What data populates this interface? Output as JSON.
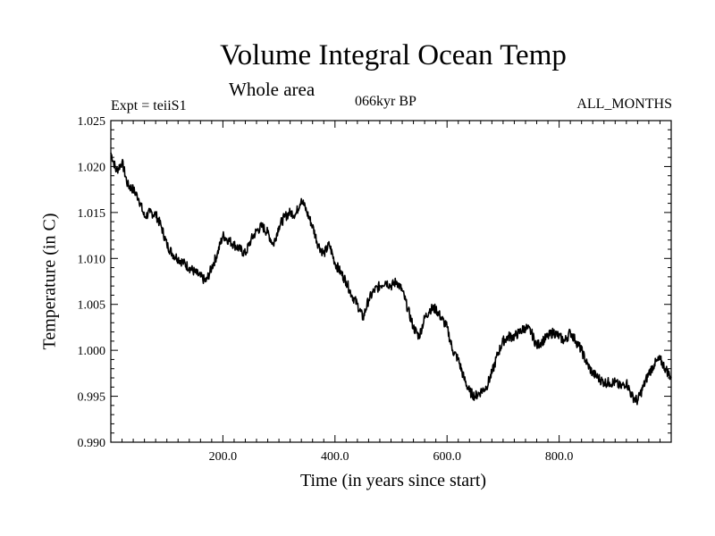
{
  "chart_data": {
    "type": "line",
    "title": "Volume Integral Ocean Temp",
    "subtitle": "Whole area",
    "annotations": {
      "experiment": "Expt = teiiS1",
      "period": "066kyr BP",
      "months": "ALL_MONTHS"
    },
    "xlabel": "Time (in years since start)",
    "ylabel": "Temperature (in C)",
    "xlim": [
      0,
      1000
    ],
    "ylim": [
      0.99,
      1.025
    ],
    "x_ticks": [
      200,
      400,
      600,
      800
    ],
    "x_tick_labels": [
      "200.0",
      "400.0",
      "600.0",
      "800.0"
    ],
    "y_ticks": [
      0.99,
      0.995,
      1.0,
      1.005,
      1.01,
      1.015,
      1.02,
      1.025
    ],
    "y_tick_labels": [
      "0.990",
      "0.995",
      "1.000",
      "1.005",
      "1.010",
      "1.015",
      "1.020",
      "1.025"
    ],
    "grid": false,
    "line_color": "#000000",
    "series": [
      {
        "x": [
          0,
          10,
          20,
          30,
          40,
          50,
          60,
          70,
          80,
          90,
          100,
          110,
          120,
          130,
          140,
          150,
          160,
          170,
          180,
          190,
          200,
          210,
          220,
          230,
          240,
          250,
          260,
          270,
          280,
          290,
          300,
          310,
          320,
          330,
          340,
          350,
          360,
          370,
          380,
          390,
          400,
          410,
          420,
          430,
          440,
          450,
          460,
          470,
          480,
          490,
          500,
          510,
          520,
          530,
          540,
          550,
          560,
          570,
          580,
          590,
          600,
          610,
          620,
          630,
          640,
          650,
          660,
          670,
          680,
          690,
          700,
          710,
          720,
          730,
          740,
          750,
          760,
          770,
          780,
          790,
          800,
          810,
          820,
          830,
          840,
          850,
          860,
          870,
          880,
          890,
          900,
          910,
          920,
          930,
          940,
          950,
          960,
          970,
          980,
          990,
          1000
        ],
        "values": [
          1.0215,
          1.0195,
          1.0205,
          1.018,
          1.0175,
          1.0165,
          1.0145,
          1.015,
          1.0148,
          1.0135,
          1.0115,
          1.0105,
          1.01,
          1.0095,
          1.009,
          1.0085,
          1.008,
          1.0075,
          1.009,
          1.0105,
          1.0125,
          1.012,
          1.0115,
          1.011,
          1.0105,
          1.012,
          1.013,
          1.0135,
          1.0128,
          1.0115,
          1.0135,
          1.0145,
          1.015,
          1.0148,
          1.0165,
          1.015,
          1.0135,
          1.0115,
          1.0105,
          1.0115,
          1.0095,
          1.0085,
          1.0075,
          1.006,
          1.005,
          1.0035,
          1.0055,
          1.0065,
          1.007,
          1.0075,
          1.007,
          1.0075,
          1.0065,
          1.0045,
          1.0025,
          1.0015,
          1.0035,
          1.0045,
          1.0045,
          1.0035,
          1.0025,
          1.0,
          0.999,
          0.997,
          0.9955,
          0.995,
          0.9955,
          0.996,
          0.9975,
          0.9995,
          1.001,
          1.0015,
          1.0015,
          1.002,
          1.0025,
          1.002,
          1.0005,
          1.001,
          1.0015,
          1.002,
          1.0015,
          1.001,
          1.002,
          1.001,
          1.0,
          0.9985,
          0.9975,
          0.997,
          0.9965,
          0.9965,
          0.9965,
          0.996,
          0.9965,
          0.995,
          0.9945,
          0.996,
          0.9975,
          0.9985,
          0.999,
          0.998,
          0.997
        ]
      }
    ]
  }
}
